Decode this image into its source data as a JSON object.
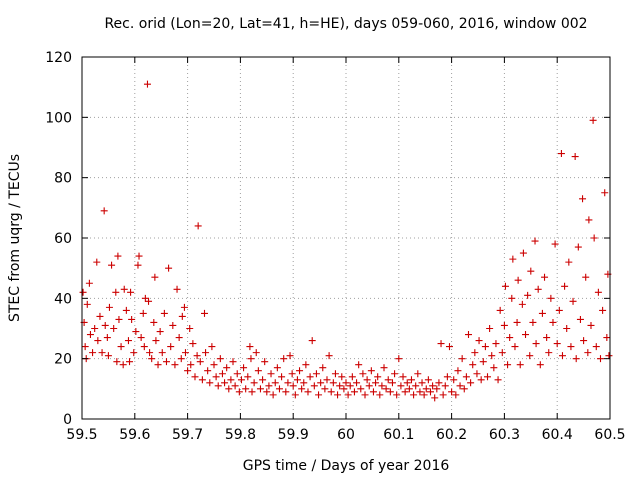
{
  "chart_data": {
    "type": "scatter",
    "title": "Rec. orid (Lon=20, Lat=41, h=HE), days 059-060, 2016, window 002",
    "xlabel": "GPS time / Days of year 2016",
    "ylabel": "STEC from uqrg / TECUs",
    "xlim": [
      59.5,
      60.5
    ],
    "ylim": [
      0,
      120
    ],
    "xticks": [
      59.5,
      59.6,
      59.7,
      59.8,
      59.9,
      60,
      60.1,
      60.2,
      60.3,
      60.4,
      60.5
    ],
    "xtick_labels": [
      "59.5",
      "59.6",
      "59.7",
      "59.8",
      "59.9",
      "60",
      "60.1",
      "60.2",
      "60.3",
      "60.4",
      "60.5"
    ],
    "yticks": [
      0,
      20,
      40,
      60,
      80,
      100,
      120
    ],
    "ytick_labels": [
      "0",
      "20",
      "40",
      "60",
      "80",
      "100",
      "120"
    ],
    "grid": true,
    "marker": "+",
    "colors": {
      "points": "#cc0000",
      "grid": "#a0a0a0",
      "axis": "#000000"
    },
    "series": [
      {
        "name": "STEC",
        "points": [
          [
            59.502,
            42
          ],
          [
            59.504,
            32
          ],
          [
            59.506,
            24
          ],
          [
            59.508,
            20
          ],
          [
            59.51,
            38
          ],
          [
            59.514,
            45
          ],
          [
            59.516,
            28
          ],
          [
            59.52,
            22
          ],
          [
            59.524,
            30
          ],
          [
            59.528,
            52
          ],
          [
            59.53,
            26
          ],
          [
            59.534,
            34
          ],
          [
            59.538,
            22
          ],
          [
            59.542,
            69
          ],
          [
            59.544,
            31
          ],
          [
            59.548,
            27
          ],
          [
            59.55,
            21
          ],
          [
            59.552,
            37
          ],
          [
            59.556,
            51
          ],
          [
            59.56,
            30
          ],
          [
            59.564,
            42
          ],
          [
            59.566,
            19
          ],
          [
            59.568,
            54
          ],
          [
            59.57,
            33
          ],
          [
            59.574,
            24
          ],
          [
            59.578,
            18
          ],
          [
            59.58,
            43
          ],
          [
            59.584,
            36
          ],
          [
            59.588,
            26
          ],
          [
            59.59,
            19
          ],
          [
            59.592,
            42
          ],
          [
            59.594,
            33
          ],
          [
            59.598,
            22
          ],
          [
            59.602,
            29
          ],
          [
            59.606,
            51
          ],
          [
            59.608,
            54
          ],
          [
            59.612,
            27
          ],
          [
            59.616,
            35
          ],
          [
            59.618,
            24
          ],
          [
            59.62,
            40
          ],
          [
            59.624,
            111
          ],
          [
            59.626,
            39
          ],
          [
            59.628,
            22
          ],
          [
            59.632,
            20
          ],
          [
            59.636,
            32
          ],
          [
            59.638,
            47
          ],
          [
            59.64,
            26
          ],
          [
            59.644,
            18
          ],
          [
            59.648,
            29
          ],
          [
            59.652,
            22
          ],
          [
            59.656,
            35
          ],
          [
            59.66,
            19
          ],
          [
            59.664,
            50
          ],
          [
            59.668,
            24
          ],
          [
            59.672,
            31
          ],
          [
            59.676,
            18
          ],
          [
            59.68,
            43
          ],
          [
            59.684,
            27
          ],
          [
            59.688,
            20
          ],
          [
            59.69,
            34
          ],
          [
            59.694,
            37
          ],
          [
            59.696,
            22
          ],
          [
            59.7,
            16
          ],
          [
            59.704,
            30
          ],
          [
            59.706,
            18
          ],
          [
            59.71,
            25
          ],
          [
            59.714,
            14
          ],
          [
            59.718,
            21
          ],
          [
            59.72,
            64
          ],
          [
            59.724,
            19
          ],
          [
            59.728,
            13
          ],
          [
            59.732,
            35
          ],
          [
            59.734,
            22
          ],
          [
            59.738,
            16
          ],
          [
            59.742,
            12
          ],
          [
            59.746,
            24
          ],
          [
            59.75,
            18
          ],
          [
            59.754,
            14
          ],
          [
            59.758,
            11
          ],
          [
            59.762,
            20
          ],
          [
            59.766,
            15
          ],
          [
            59.77,
            12
          ],
          [
            59.774,
            17
          ],
          [
            59.778,
            10
          ],
          [
            59.782,
            13
          ],
          [
            59.786,
            19
          ],
          [
            59.79,
            11
          ],
          [
            59.794,
            15
          ],
          [
            59.798,
            9
          ],
          [
            59.802,
            13
          ],
          [
            59.806,
            17
          ],
          [
            59.81,
            10
          ],
          [
            59.814,
            14
          ],
          [
            59.818,
            24
          ],
          [
            59.82,
            20
          ],
          [
            59.822,
            9
          ],
          [
            59.826,
            12
          ],
          [
            59.83,
            22
          ],
          [
            59.834,
            16
          ],
          [
            59.838,
            10
          ],
          [
            59.842,
            13
          ],
          [
            59.846,
            19
          ],
          [
            59.85,
            9
          ],
          [
            59.854,
            11
          ],
          [
            59.858,
            15
          ],
          [
            59.862,
            8
          ],
          [
            59.866,
            12
          ],
          [
            59.87,
            17
          ],
          [
            59.874,
            10
          ],
          [
            59.878,
            14
          ],
          [
            59.882,
            20
          ],
          [
            59.886,
            9
          ],
          [
            59.89,
            12
          ],
          [
            59.894,
            21
          ],
          [
            59.898,
            15
          ],
          [
            59.9,
            11
          ],
          [
            59.904,
            8
          ],
          [
            59.908,
            13
          ],
          [
            59.912,
            16
          ],
          [
            59.916,
            10
          ],
          [
            59.92,
            12
          ],
          [
            59.924,
            18
          ],
          [
            59.928,
            9
          ],
          [
            59.932,
            14
          ],
          [
            59.936,
            26
          ],
          [
            59.94,
            11
          ],
          [
            59.944,
            15
          ],
          [
            59.948,
            8
          ],
          [
            59.952,
            12
          ],
          [
            59.956,
            17
          ],
          [
            59.96,
            10
          ],
          [
            59.964,
            13
          ],
          [
            59.968,
            21
          ],
          [
            59.972,
            9
          ],
          [
            59.976,
            12
          ],
          [
            59.98,
            15
          ],
          [
            59.984,
            8
          ],
          [
            59.988,
            11
          ],
          [
            59.992,
            14
          ],
          [
            59.996,
            10
          ],
          [
            60.0,
            12
          ],
          [
            60.004,
            8
          ],
          [
            60.008,
            11
          ],
          [
            60.012,
            14
          ],
          [
            60.016,
            9
          ],
          [
            60.02,
            12
          ],
          [
            60.024,
            18
          ],
          [
            60.028,
            10
          ],
          [
            60.032,
            15
          ],
          [
            60.036,
            8
          ],
          [
            60.04,
            13
          ],
          [
            60.044,
            11
          ],
          [
            60.048,
            16
          ],
          [
            60.052,
            9
          ],
          [
            60.056,
            12
          ],
          [
            60.06,
            14
          ],
          [
            60.064,
            8
          ],
          [
            60.068,
            11
          ],
          [
            60.072,
            17
          ],
          [
            60.076,
            10
          ],
          [
            60.08,
            13
          ],
          [
            60.084,
            9
          ],
          [
            60.088,
            12
          ],
          [
            60.092,
            15
          ],
          [
            60.096,
            8
          ],
          [
            60.1,
            20
          ],
          [
            60.104,
            11
          ],
          [
            60.108,
            14
          ],
          [
            60.112,
            9
          ],
          [
            60.116,
            12
          ],
          [
            60.12,
            10
          ],
          [
            60.124,
            13
          ],
          [
            60.128,
            8
          ],
          [
            60.132,
            11
          ],
          [
            60.136,
            15
          ],
          [
            60.14,
            9
          ],
          [
            60.144,
            12
          ],
          [
            60.148,
            8
          ],
          [
            60.152,
            10
          ],
          [
            60.156,
            13
          ],
          [
            60.16,
            9
          ],
          [
            60.164,
            11
          ],
          [
            60.168,
            7
          ],
          [
            60.172,
            10
          ],
          [
            60.176,
            12
          ],
          [
            60.18,
            25
          ],
          [
            60.184,
            8
          ],
          [
            60.188,
            11
          ],
          [
            60.192,
            14
          ],
          [
            60.196,
            24
          ],
          [
            60.2,
            9
          ],
          [
            60.204,
            13
          ],
          [
            60.208,
            8
          ],
          [
            60.212,
            16
          ],
          [
            60.216,
            11
          ],
          [
            60.22,
            20
          ],
          [
            60.224,
            10
          ],
          [
            60.228,
            14
          ],
          [
            60.232,
            28
          ],
          [
            60.236,
            12
          ],
          [
            60.24,
            18
          ],
          [
            60.244,
            22
          ],
          [
            60.248,
            15
          ],
          [
            60.252,
            26
          ],
          [
            60.256,
            13
          ],
          [
            60.26,
            19
          ],
          [
            60.264,
            24
          ],
          [
            60.268,
            14
          ],
          [
            60.272,
            30
          ],
          [
            60.276,
            21
          ],
          [
            60.28,
            17
          ],
          [
            60.284,
            25
          ],
          [
            60.288,
            13
          ],
          [
            60.292,
            36
          ],
          [
            60.296,
            22
          ],
          [
            60.3,
            31
          ],
          [
            60.302,
            44
          ],
          [
            60.306,
            18
          ],
          [
            60.31,
            27
          ],
          [
            60.314,
            40
          ],
          [
            60.316,
            53
          ],
          [
            60.32,
            24
          ],
          [
            60.324,
            32
          ],
          [
            60.326,
            46
          ],
          [
            60.33,
            18
          ],
          [
            60.334,
            38
          ],
          [
            60.336,
            55
          ],
          [
            60.34,
            28
          ],
          [
            60.344,
            41
          ],
          [
            60.348,
            21
          ],
          [
            60.35,
            49
          ],
          [
            60.354,
            32
          ],
          [
            60.358,
            59
          ],
          [
            60.36,
            25
          ],
          [
            60.364,
            43
          ],
          [
            60.368,
            18
          ],
          [
            60.372,
            35
          ],
          [
            60.376,
            47
          ],
          [
            60.38,
            27
          ],
          [
            60.384,
            22
          ],
          [
            60.388,
            40
          ],
          [
            60.392,
            32
          ],
          [
            60.396,
            58
          ],
          [
            60.4,
            25
          ],
          [
            60.404,
            36
          ],
          [
            60.408,
            88
          ],
          [
            60.41,
            21
          ],
          [
            60.414,
            44
          ],
          [
            60.418,
            30
          ],
          [
            60.422,
            52
          ],
          [
            60.426,
            24
          ],
          [
            60.43,
            39
          ],
          [
            60.434,
            87
          ],
          [
            60.436,
            20
          ],
          [
            60.44,
            57
          ],
          [
            60.444,
            33
          ],
          [
            60.448,
            73
          ],
          [
            60.45,
            26
          ],
          [
            60.454,
            47
          ],
          [
            60.458,
            22
          ],
          [
            60.46,
            66
          ],
          [
            60.464,
            31
          ],
          [
            60.468,
            99
          ],
          [
            60.47,
            60
          ],
          [
            60.474,
            24
          ],
          [
            60.478,
            42
          ],
          [
            60.482,
            20
          ],
          [
            60.486,
            36
          ],
          [
            60.49,
            75
          ],
          [
            60.494,
            27
          ],
          [
            60.496,
            48
          ],
          [
            60.498,
            21
          ]
        ]
      }
    ]
  }
}
